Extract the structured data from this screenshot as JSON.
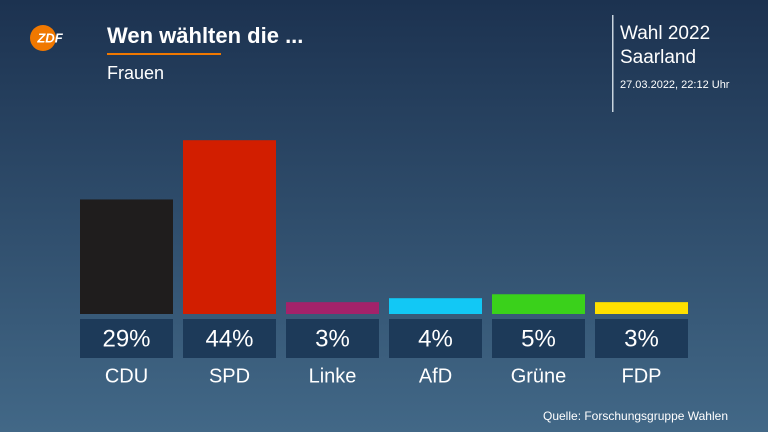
{
  "chart_data": {
    "type": "bar",
    "logo": "ZDF",
    "title": "Wen wählten die ...",
    "subtitle": "Frauen",
    "election": "Wahl 2022",
    "region": "Saarland",
    "timestamp": "27.03.2022, 22:12 Uhr",
    "source": "Quelle: Forschungsgruppe Wahlen",
    "categories": [
      "CDU",
      "SPD",
      "Linke",
      "AfD",
      "Grüne",
      "FDP"
    ],
    "values": [
      29,
      44,
      3,
      4,
      5,
      3
    ],
    "value_labels": [
      "29%",
      "44%",
      "3%",
      "4%",
      "5%",
      "3%"
    ],
    "colors": [
      "#1f1d1d",
      "#d21e00",
      "#a3226a",
      "#12c8f5",
      "#3ad11b",
      "#ffe000"
    ]
  }
}
